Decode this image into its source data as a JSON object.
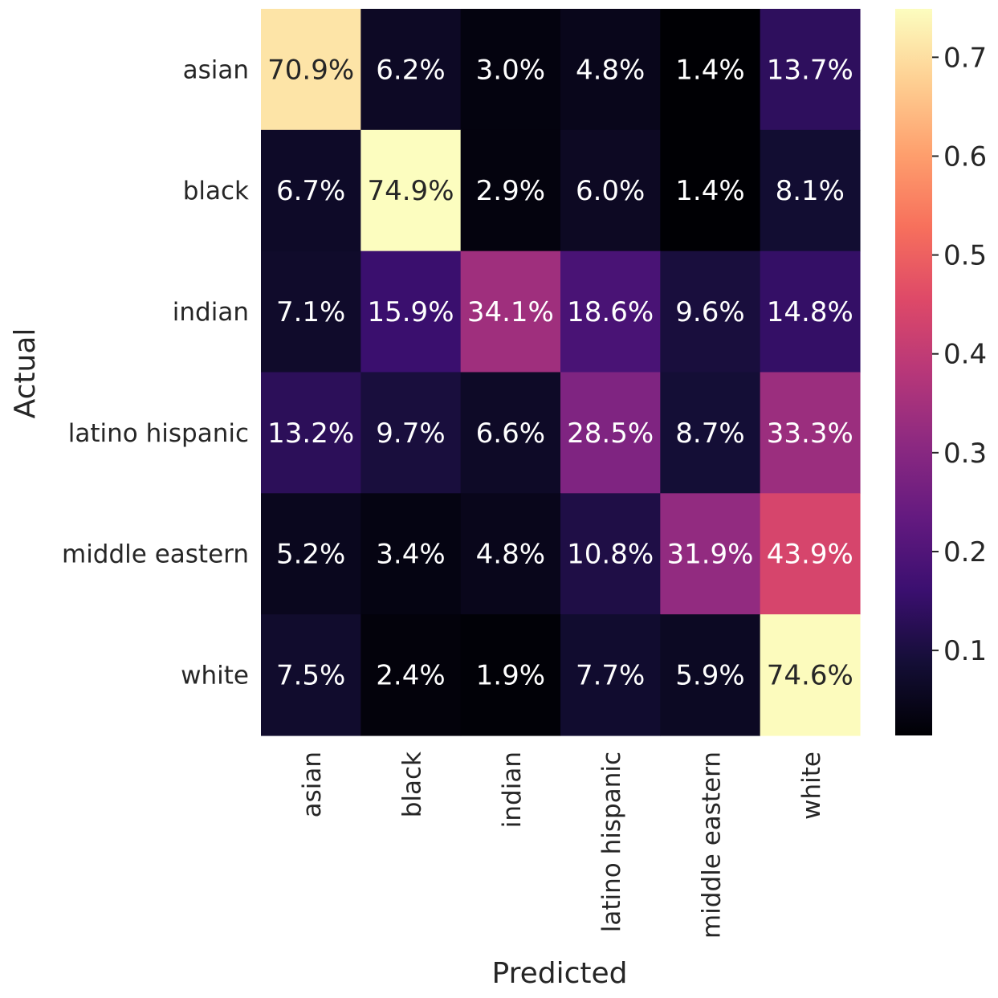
{
  "chart_data": {
    "type": "heatmap",
    "title": "",
    "xlabel": "Predicted",
    "ylabel": "Actual",
    "x_categories": [
      "asian",
      "black",
      "indian",
      "latino hispanic",
      "middle eastern",
      "white"
    ],
    "y_categories": [
      "asian",
      "black",
      "indian",
      "latino hispanic",
      "middle eastern",
      "white"
    ],
    "values": [
      [
        0.709,
        0.062,
        0.03,
        0.048,
        0.014,
        0.137
      ],
      [
        0.067,
        0.749,
        0.029,
        0.06,
        0.014,
        0.081
      ],
      [
        0.071,
        0.159,
        0.341,
        0.186,
        0.096,
        0.148
      ],
      [
        0.132,
        0.097,
        0.066,
        0.285,
        0.087,
        0.333
      ],
      [
        0.052,
        0.034,
        0.048,
        0.108,
        0.319,
        0.439
      ],
      [
        0.075,
        0.024,
        0.019,
        0.077,
        0.059,
        0.746
      ]
    ],
    "cell_labels": [
      [
        "70.9%",
        "6.2%",
        "3.0%",
        "4.8%",
        "1.4%",
        "13.7%"
      ],
      [
        "6.7%",
        "74.9%",
        "2.9%",
        "6.0%",
        "1.4%",
        "8.1%"
      ],
      [
        "7.1%",
        "15.9%",
        "34.1%",
        "18.6%",
        "9.6%",
        "14.8%"
      ],
      [
        "13.2%",
        "9.7%",
        "6.6%",
        "28.5%",
        "8.7%",
        "33.3%"
      ],
      [
        "5.2%",
        "3.4%",
        "4.8%",
        "10.8%",
        "31.9%",
        "43.9%"
      ],
      [
        "7.5%",
        "2.4%",
        "1.9%",
        "7.7%",
        "5.9%",
        "74.6%"
      ]
    ],
    "colormap": "magma",
    "colorbar": {
      "range": [
        0.014,
        0.749
      ],
      "ticks": [
        0.1,
        0.2,
        0.3,
        0.4,
        0.5,
        0.6,
        0.7
      ],
      "tick_labels": [
        "0.1",
        "0.2",
        "0.3",
        "0.4",
        "0.5",
        "0.6",
        "0.7"
      ]
    },
    "grid": false
  }
}
